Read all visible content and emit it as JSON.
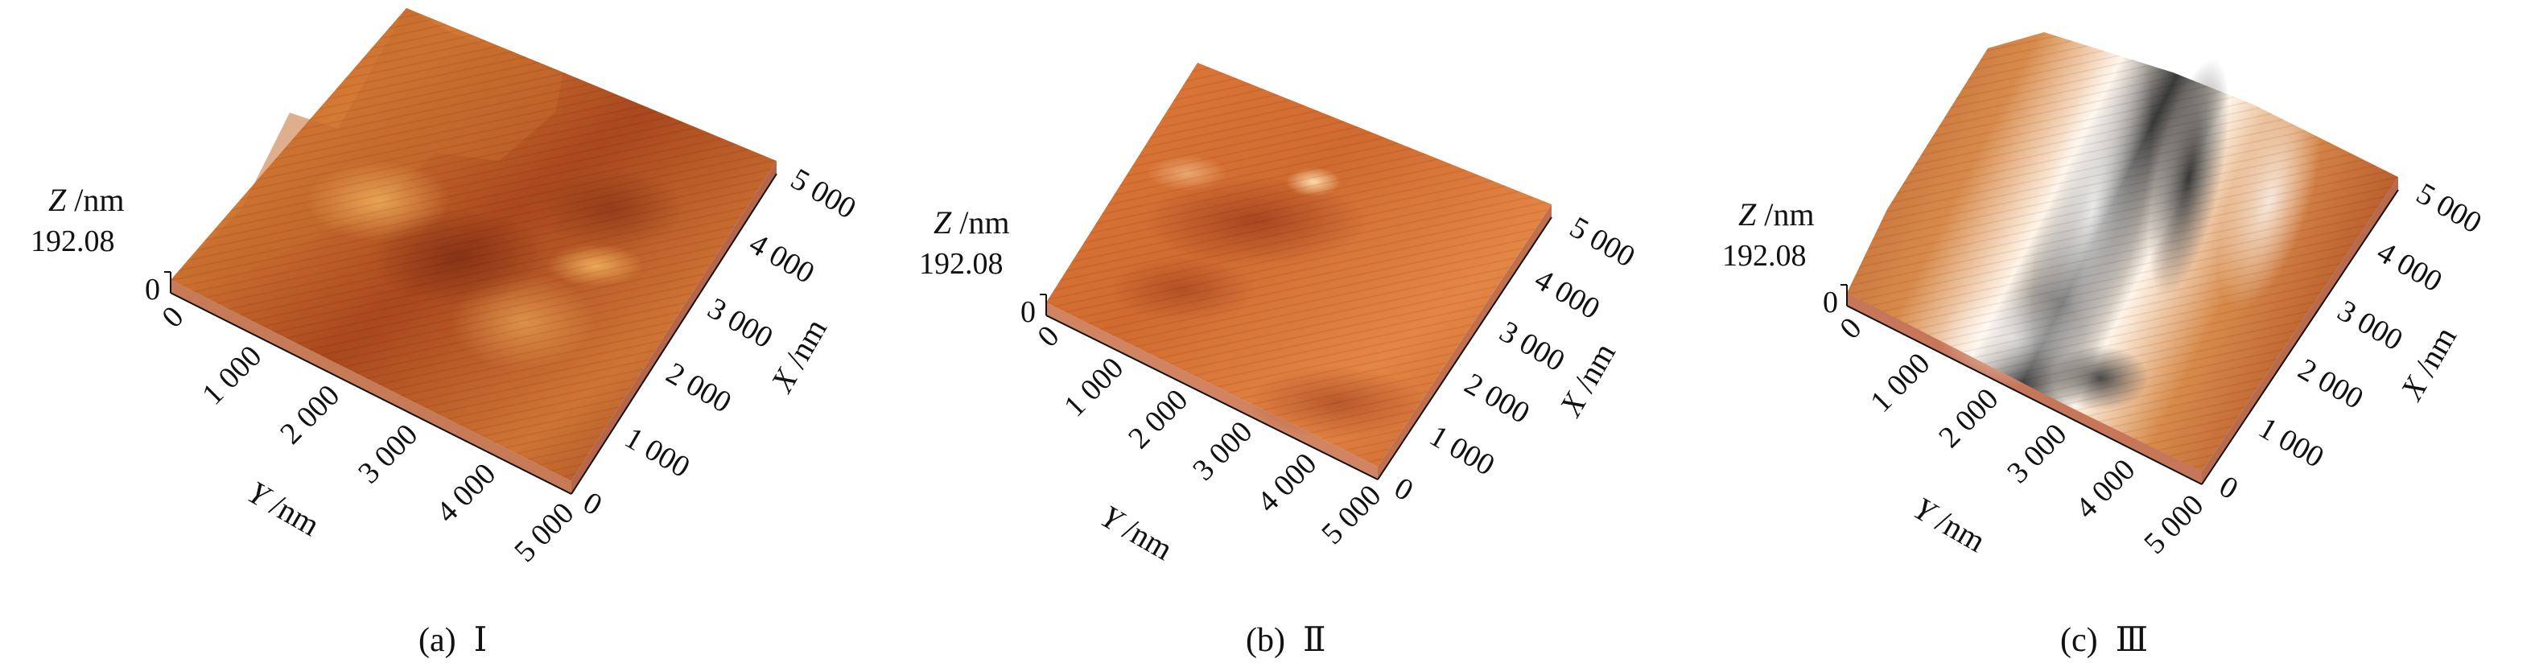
{
  "figure": {
    "panels": [
      {
        "caption_label": "(a)",
        "caption_text": "Ⅰ",
        "z_label_var": "Z",
        "z_label_unit": "/nm",
        "z_max": "192.08",
        "z_min": "0",
        "x_label_var": "X",
        "x_label_unit": "/nm",
        "y_label_var": "Y",
        "y_label_unit": "/nm",
        "x_ticks": [
          "0",
          "1 000",
          "2 000",
          "3 000",
          "4 000",
          "5 000"
        ],
        "y_ticks": [
          "0",
          "1 000",
          "2 000",
          "3 000",
          "4 000",
          "5 000"
        ]
      },
      {
        "caption_label": "(b)",
        "caption_text": "Ⅱ",
        "z_label_var": "Z",
        "z_label_unit": "/nm",
        "z_max": "192.08",
        "z_min": "0",
        "x_label_var": "X",
        "x_label_unit": "/nm",
        "y_label_var": "Y",
        "y_label_unit": "/nm",
        "x_ticks": [
          "0",
          "1 000",
          "2 000",
          "3 000",
          "4 000",
          "5 000"
        ],
        "y_ticks": [
          "0",
          "1 000",
          "2 000",
          "3 000",
          "4 000",
          "5 000"
        ]
      },
      {
        "caption_label": "(c)",
        "caption_text": "Ⅲ",
        "z_label_var": "Z",
        "z_label_unit": "/nm",
        "z_max": "192.08",
        "z_min": "0",
        "x_label_var": "X",
        "x_label_unit": "/nm",
        "y_label_var": "Y",
        "y_label_unit": "/nm",
        "x_ticks": [
          "0",
          "1 000",
          "2 000",
          "3 000",
          "4 000",
          "5 000"
        ],
        "y_ticks": [
          "0",
          "1 000",
          "2 000",
          "3 000",
          "4 000",
          "5 000"
        ]
      }
    ]
  },
  "colors": {
    "surface_dark": "#7a2a12",
    "surface_mid": "#c8642a",
    "surface_light": "#e8a060",
    "highlight": "#fff3e0",
    "shadow": "#3a3a3a",
    "base": "#b05a36"
  }
}
